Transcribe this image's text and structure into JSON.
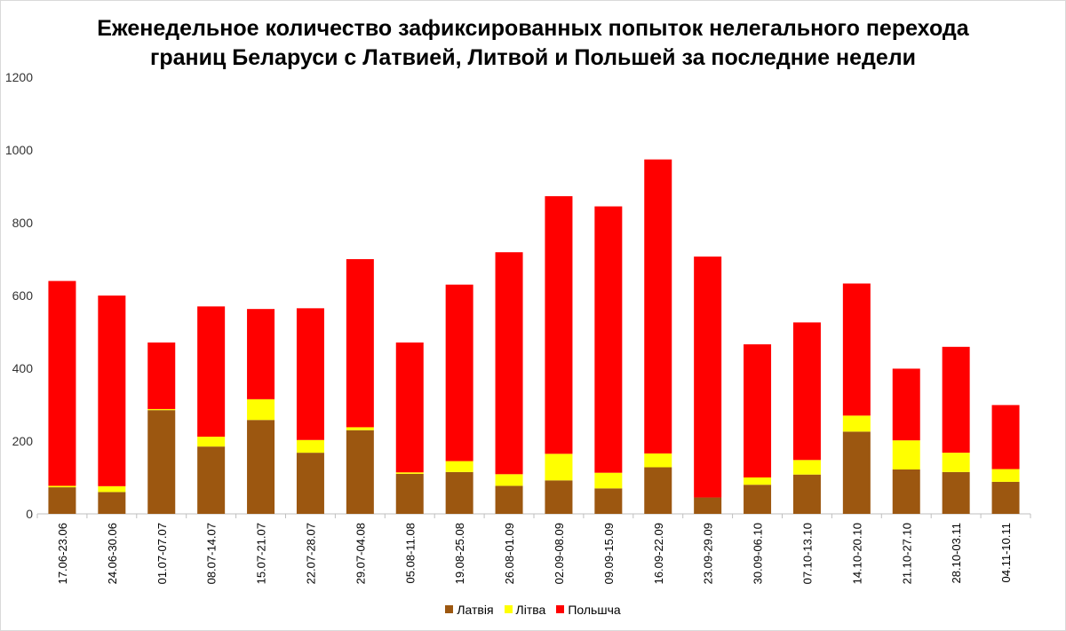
{
  "chart_data": {
    "type": "bar",
    "stacked": true,
    "title_line1": "Еженедельное количество зафиксированных попыток нелегального перехода",
    "title_line2": "границ Беларуси с Латвией, Литвой и Польшей за последние недели",
    "xlabel": "",
    "ylabel": "",
    "ylim": [
      0,
      1200
    ],
    "yticks": [
      "0",
      "200",
      "400",
      "600",
      "800",
      "1000",
      "1200"
    ],
    "grid": false,
    "legend_position": "bottom",
    "categories": [
      "17.06-23.06",
      "24.06-30.06",
      "01.07-07.07",
      "08.07-14.07",
      "15.07-21.07",
      "22.07-28.07",
      "29.07-04.08",
      "05.08-11.08",
      "19.08-25.08",
      "26.08-01.09",
      "02.09-08.09",
      "09.09-15.09",
      "16.09-22.09",
      "23.09-29.09",
      "30.09-06.10",
      "07.10-13.10",
      "14.10-20.10",
      "21.10-27.10",
      "28.10-03.11",
      "04.11-10.11"
    ],
    "series": [
      {
        "name": "Латвія",
        "color": "#9C5710",
        "values": [
          73,
          60,
          285,
          185,
          258,
          168,
          230,
          110,
          115,
          77,
          92,
          70,
          128,
          45,
          80,
          108,
          226,
          122,
          115,
          88
        ]
      },
      {
        "name": "Літва",
        "color": "#FFFF00",
        "values": [
          4,
          16,
          3,
          27,
          57,
          35,
          8,
          4,
          30,
          32,
          73,
          43,
          38,
          0,
          20,
          40,
          44,
          80,
          53,
          35
        ]
      },
      {
        "name": "Польшча",
        "color": "#FF0000",
        "values": [
          563,
          524,
          183,
          358,
          248,
          362,
          462,
          357,
          485,
          610,
          708,
          732,
          808,
          662,
          366,
          378,
          363,
          197,
          291,
          176
        ]
      }
    ]
  }
}
